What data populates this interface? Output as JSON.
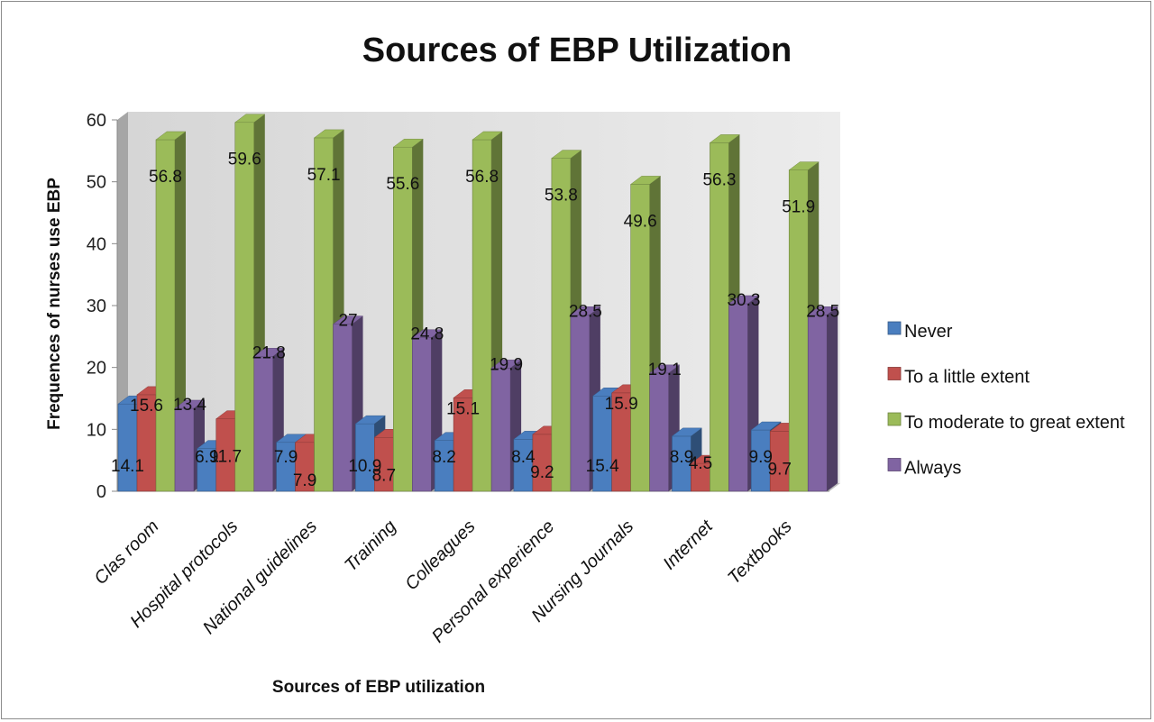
{
  "chart_data": {
    "type": "bar",
    "title": "Sources of EBP Utilization",
    "xlabel": "Sources of EBP utilization",
    "ylabel": "Frequences of nurses use EBP",
    "ylim": [
      0,
      60
    ],
    "yticks": [
      0,
      10,
      20,
      30,
      40,
      50,
      60
    ],
    "grid": false,
    "legend_position": "right",
    "categories": [
      "Clas room",
      "Hospital protocols",
      "National guidelines",
      "Training",
      "Colleagues",
      "Personal experience",
      "Nursing Journals",
      "Internet",
      "Textbooks"
    ],
    "series": [
      {
        "name": "Never",
        "color": "#4a7ebf",
        "values": [
          14.1,
          6.9,
          7.9,
          10.9,
          8.2,
          8.4,
          15.4,
          8.9,
          9.9
        ]
      },
      {
        "name": "To a little extent",
        "color": "#c0504d",
        "values": [
          15.6,
          11.7,
          7.9,
          8.7,
          15.1,
          9.2,
          15.9,
          4.5,
          9.7
        ]
      },
      {
        "name": "To moderate to great extent",
        "color": "#9bbb59",
        "values": [
          56.8,
          59.6,
          57.1,
          55.6,
          56.8,
          53.8,
          49.6,
          56.3,
          51.9
        ]
      },
      {
        "name": "Always",
        "color": "#8064a2",
        "values": [
          13.4,
          21.8,
          27,
          24.8,
          19.9,
          28.5,
          19.1,
          30.3,
          28.5
        ]
      }
    ]
  }
}
